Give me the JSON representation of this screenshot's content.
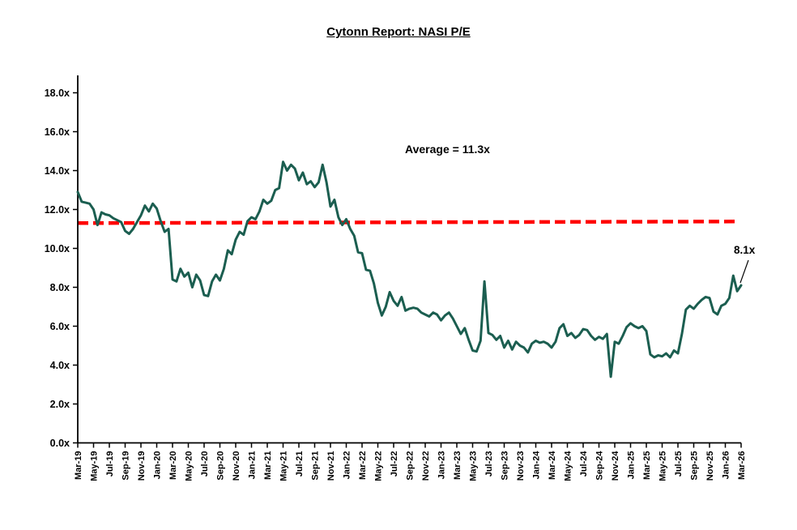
{
  "title": "Cytonn Report: NASI P/E",
  "annotations": {
    "average_label": "Average = 11.3x",
    "last_point_label": "8.1x"
  },
  "colors": {
    "series": "#1b5e50",
    "average_line": "#ff0000",
    "axis": "#000000",
    "text": "#000000",
    "background": "#ffffff"
  },
  "chart_data": {
    "type": "line",
    "title": "Cytonn Report: NASI P/E",
    "series_name": "NASI P/E",
    "grid": false,
    "legend_position": "none",
    "ylim": [
      0,
      19
    ],
    "y_tick_labels": [
      "0.0x",
      "2.0x",
      "4.0x",
      "6.0x",
      "8.0x",
      "10.0x",
      "12.0x",
      "14.0x",
      "16.0x",
      "18.0x"
    ],
    "y_tick_values": [
      0,
      2,
      4,
      6,
      8,
      10,
      12,
      14,
      16,
      18
    ],
    "x_tick_labels": [
      "Mar-19",
      "May-19",
      "Jul-19",
      "Sep-19",
      "Nov-19",
      "Jan-20",
      "Mar-20",
      "May-20",
      "Jul-20",
      "Sep-20",
      "Nov-20",
      "Jan-21",
      "Mar-21",
      "May-21",
      "Jul-21",
      "Sep-21",
      "Nov-21",
      "Jan-22",
      "Mar-22",
      "May-22",
      "Jul-22",
      "Sep-22",
      "Nov-22",
      "Jan-23",
      "Mar-23",
      "May-23",
      "Jul-23",
      "Sep-23",
      "Nov-23",
      "Jan-24",
      "Mar-24",
      "May-24",
      "Jul-24",
      "Sep-24",
      "Nov-24",
      "Jan-25",
      "Mar-25",
      "May-25",
      "Jul-25",
      "Sep-25",
      "Nov-25",
      "Jan-26",
      "Mar-26"
    ],
    "x_start": "Mar-19",
    "x_end": "Mar-26",
    "x_step_months": 0.5,
    "values": [
      12.9,
      12.4,
      12.35,
      12.3,
      12.0,
      11.2,
      11.85,
      11.75,
      11.7,
      11.55,
      11.45,
      11.35,
      10.9,
      10.75,
      11.0,
      11.35,
      11.7,
      12.2,
      11.9,
      12.3,
      12.05,
      11.4,
      10.85,
      11.0,
      8.4,
      8.3,
      8.95,
      8.55,
      8.75,
      8.0,
      8.65,
      8.35,
      7.6,
      7.55,
      8.3,
      8.65,
      8.35,
      8.95,
      9.9,
      9.7,
      10.45,
      10.85,
      10.7,
      11.4,
      11.6,
      11.5,
      11.9,
      12.5,
      12.3,
      12.45,
      13.0,
      13.1,
      14.45,
      14.0,
      14.3,
      14.1,
      13.5,
      13.9,
      13.3,
      13.45,
      13.15,
      13.4,
      14.3,
      13.4,
      12.15,
      12.5,
      11.6,
      11.2,
      11.5,
      11.0,
      10.65,
      9.8,
      9.75,
      8.9,
      8.85,
      8.2,
      7.2,
      6.55,
      7.0,
      7.75,
      7.3,
      7.05,
      7.5,
      6.8,
      6.9,
      6.95,
      6.9,
      6.7,
      6.6,
      6.5,
      6.7,
      6.6,
      6.3,
      6.55,
      6.7,
      6.4,
      6.0,
      5.6,
      5.9,
      5.3,
      4.75,
      4.7,
      5.25,
      8.3,
      5.65,
      5.55,
      5.3,
      5.5,
      4.9,
      5.25,
      4.8,
      5.2,
      5.0,
      4.9,
      4.65,
      5.1,
      5.25,
      5.15,
      5.2,
      5.1,
      4.9,
      5.2,
      5.9,
      6.1,
      5.5,
      5.65,
      5.4,
      5.55,
      5.85,
      5.8,
      5.5,
      5.3,
      5.45,
      5.35,
      5.6,
      3.4,
      5.2,
      5.1,
      5.5,
      5.95,
      6.15,
      6.0,
      5.9,
      6.0,
      5.75,
      4.55,
      4.4,
      4.5,
      4.45,
      4.6,
      4.4,
      4.75,
      4.6,
      5.6,
      6.85,
      7.05,
      6.9,
      7.15,
      7.35,
      7.5,
      7.45,
      6.75,
      6.6,
      7.05,
      7.15,
      7.45,
      8.6,
      7.8,
      8.1
    ],
    "average": 11.3,
    "average_label": "Average = 11.3x",
    "last_value": 8.1,
    "last_value_label": "8.1x"
  }
}
